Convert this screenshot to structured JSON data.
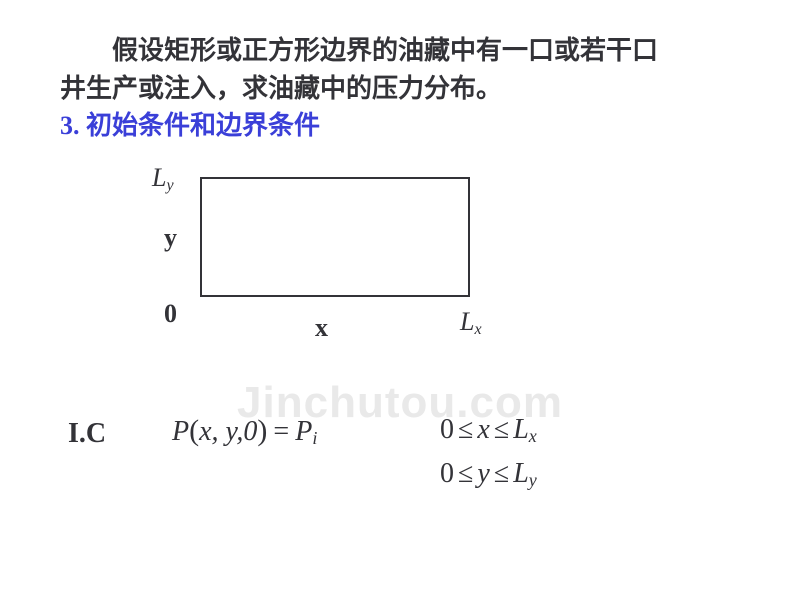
{
  "text": {
    "line1": "假设矩形或正方形边界的油藏中有一口或若干口",
    "line2": "井生产或注入，求油藏中的压力分布。",
    "line3": "3. 初始条件和边界条件"
  },
  "diagram": {
    "Ly_main": "L",
    "Ly_sub": "y",
    "y": "y",
    "zero": "0",
    "x": "x",
    "Lx_main": "L",
    "Lx_sub": "x"
  },
  "ic": {
    "label": "I.C",
    "P": "P",
    "lp": "(",
    "args": "x, y,0",
    "rp": ")",
    "eq": "=",
    "Pi_main": "P",
    "Pi_sub": "i"
  },
  "range1": {
    "zero": "0",
    "le1": "≤",
    "x": "x",
    "le2": "≤",
    "L": "L",
    "Lsub": "x"
  },
  "range2": {
    "zero": "0",
    "le1": "≤",
    "y": "y",
    "le2": "≤",
    "L": "L",
    "Lsub": "y"
  },
  "watermark": "Jinchutou.com"
}
